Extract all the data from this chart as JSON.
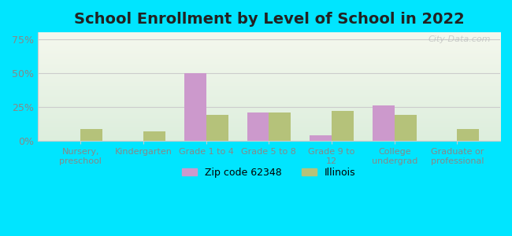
{
  "title": "School Enrollment by Level of School in 2022",
  "categories": [
    "Nursery,\npreschool",
    "Kindergarten",
    "Grade 1 to 4",
    "Grade 5 to 8",
    "Grade 9 to\n12",
    "College\nundergrad",
    "Graduate or\nprofessional"
  ],
  "zip_values": [
    0,
    0,
    50,
    21,
    4,
    26,
    0
  ],
  "il_values": [
    9,
    7,
    19,
    21,
    22,
    19,
    9
  ],
  "zip_color": "#cc99cc",
  "il_color": "#b5c27a",
  "background_outer": "#00e5ff",
  "yticks": [
    0,
    25,
    50,
    75
  ],
  "ylim": [
    0,
    80
  ],
  "bar_width": 0.35,
  "legend_labels": [
    "Zip code 62348",
    "Illinois"
  ],
  "watermark": "City-Data.com",
  "title_fontsize": 14,
  "tick_color": "#888888"
}
